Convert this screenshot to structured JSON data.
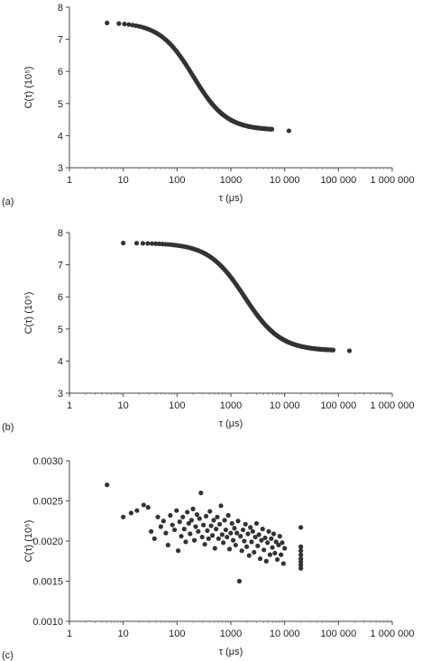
{
  "chart_data": [
    {
      "type": "scatter",
      "panel_label": "(a)",
      "xlabel": "τ (μs)",
      "ylabel": "C(τ) (10⁵)",
      "xscale": "log",
      "xlim": [
        1,
        1000000
      ],
      "ylim": [
        3,
        8
      ],
      "xticks": [
        1,
        10,
        100,
        1000,
        10000,
        100000,
        1000000
      ],
      "xtick_labels": [
        "1",
        "10",
        "100",
        "1000",
        "10 000",
        "100 000",
        "1 000 000"
      ],
      "yticks": [
        3,
        4,
        5,
        6,
        7,
        8
      ],
      "ytick_labels": [
        "3",
        "4",
        "5",
        "6",
        "7",
        "8"
      ],
      "grid": false,
      "legend": "none",
      "marker_color": "#333333",
      "curve": {
        "type": "sigmoid",
        "x_start": 5,
        "x_end": 5800,
        "count": 120,
        "y_base": 4.17,
        "amplitude": 3.36,
        "tau_c": 200,
        "exponent": 1.4
      },
      "extra_points": [
        {
          "x": 12000,
          "y": 4.15
        }
      ]
    },
    {
      "type": "scatter",
      "panel_label": "(b)",
      "xlabel": "τ (μs)",
      "ylabel": "C(τ) (10⁵)",
      "xscale": "log",
      "xlim": [
        1,
        1000000
      ],
      "ylim": [
        3,
        8
      ],
      "xticks": [
        1,
        10,
        100,
        1000,
        10000,
        100000,
        1000000
      ],
      "xtick_labels": [
        "1",
        "10",
        "100",
        "1000",
        "10 000",
        "100 000",
        "1 000 000"
      ],
      "yticks": [
        3,
        4,
        5,
        6,
        7,
        8
      ],
      "ytick_labels": [
        "3",
        "4",
        "5",
        "6",
        "7",
        "8"
      ],
      "grid": false,
      "legend": "none",
      "marker_color": "#333333",
      "curve": {
        "type": "sigmoid",
        "x_start": 10,
        "x_end": 80000,
        "count": 150,
        "y_base": 4.32,
        "amplitude": 3.36,
        "tau_c": 1800,
        "exponent": 1.3
      },
      "extra_points": [
        {
          "x": 160000,
          "y": 4.32
        }
      ]
    },
    {
      "type": "scatter",
      "panel_label": "(c)",
      "xlabel": "τ (μs)",
      "ylabel": "C(τ) (10⁵)",
      "xscale": "log",
      "xlim": [
        1,
        1000000
      ],
      "ylim": [
        0.001,
        0.003
      ],
      "xticks": [
        1,
        10,
        100,
        1000,
        10000,
        100000,
        1000000
      ],
      "xtick_labels": [
        "1",
        "10",
        "100",
        "1000",
        "10 000",
        "100 000",
        "1 000 000"
      ],
      "yticks": [
        0.001,
        0.0015,
        0.002,
        0.0025,
        0.003
      ],
      "ytick_labels": [
        "0.0010",
        "0.0015",
        "0.0020",
        "0.0025",
        "0.0030"
      ],
      "grid": false,
      "legend": "none",
      "marker_color": "#333333",
      "points": [
        {
          "x": 5,
          "y": 0.0027
        },
        {
          "x": 10,
          "y": 0.0023
        },
        {
          "x": 14,
          "y": 0.00235
        },
        {
          "x": 18,
          "y": 0.00238
        },
        {
          "x": 24,
          "y": 0.00245
        },
        {
          "x": 29,
          "y": 0.00242
        },
        {
          "x": 33,
          "y": 0.00212
        },
        {
          "x": 38,
          "y": 0.00203
        },
        {
          "x": 44,
          "y": 0.0023
        },
        {
          "x": 50,
          "y": 0.00218
        },
        {
          "x": 56,
          "y": 0.00225
        },
        {
          "x": 62,
          "y": 0.0021
        },
        {
          "x": 68,
          "y": 0.00195
        },
        {
          "x": 75,
          "y": 0.00232
        },
        {
          "x": 82,
          "y": 0.0022
        },
        {
          "x": 90,
          "y": 0.00214
        },
        {
          "x": 98,
          "y": 0.00238
        },
        {
          "x": 105,
          "y": 0.00188
        },
        {
          "x": 112,
          "y": 0.00224
        },
        {
          "x": 120,
          "y": 0.00206
        },
        {
          "x": 128,
          "y": 0.0023
        },
        {
          "x": 136,
          "y": 0.00215
        },
        {
          "x": 145,
          "y": 0.00199
        },
        {
          "x": 155,
          "y": 0.00236
        },
        {
          "x": 165,
          "y": 0.00222
        },
        {
          "x": 175,
          "y": 0.00209
        },
        {
          "x": 186,
          "y": 0.00226
        },
        {
          "x": 198,
          "y": 0.0024
        },
        {
          "x": 210,
          "y": 0.00201
        },
        {
          "x": 222,
          "y": 0.00218
        },
        {
          "x": 235,
          "y": 0.00233
        },
        {
          "x": 248,
          "y": 0.00212
        },
        {
          "x": 262,
          "y": 0.00228
        },
        {
          "x": 278,
          "y": 0.0026
        },
        {
          "x": 293,
          "y": 0.00205
        },
        {
          "x": 310,
          "y": 0.0022
        },
        {
          "x": 328,
          "y": 0.00196
        },
        {
          "x": 346,
          "y": 0.00231
        },
        {
          "x": 366,
          "y": 0.00213
        },
        {
          "x": 386,
          "y": 0.00203
        },
        {
          "x": 408,
          "y": 0.00237
        },
        {
          "x": 430,
          "y": 0.00219
        },
        {
          "x": 455,
          "y": 0.00207
        },
        {
          "x": 480,
          "y": 0.00226
        },
        {
          "x": 505,
          "y": 0.00191
        },
        {
          "x": 532,
          "y": 0.00215
        },
        {
          "x": 560,
          "y": 0.0023
        },
        {
          "x": 590,
          "y": 0.00203
        },
        {
          "x": 620,
          "y": 0.00221
        },
        {
          "x": 655,
          "y": 0.00244
        },
        {
          "x": 690,
          "y": 0.00208
        },
        {
          "x": 725,
          "y": 0.00198
        },
        {
          "x": 765,
          "y": 0.00226
        },
        {
          "x": 805,
          "y": 0.00214
        },
        {
          "x": 850,
          "y": 0.00205
        },
        {
          "x": 895,
          "y": 0.00232
        },
        {
          "x": 945,
          "y": 0.0019
        },
        {
          "x": 995,
          "y": 0.0021
        },
        {
          "x": 1050,
          "y": 0.00222
        },
        {
          "x": 1105,
          "y": 0.00201
        },
        {
          "x": 1165,
          "y": 0.00216
        },
        {
          "x": 1230,
          "y": 0.00195
        },
        {
          "x": 1295,
          "y": 0.0021
        },
        {
          "x": 1365,
          "y": 0.00225
        },
        {
          "x": 1440,
          "y": 0.0015
        },
        {
          "x": 1515,
          "y": 0.00206
        },
        {
          "x": 1600,
          "y": 0.00188
        },
        {
          "x": 1685,
          "y": 0.00214
        },
        {
          "x": 1775,
          "y": 0.002
        },
        {
          "x": 1870,
          "y": 0.00221
        },
        {
          "x": 1970,
          "y": 0.00193
        },
        {
          "x": 2080,
          "y": 0.00209
        },
        {
          "x": 2190,
          "y": 0.00182
        },
        {
          "x": 2310,
          "y": 0.00217
        },
        {
          "x": 2430,
          "y": 0.00199
        },
        {
          "x": 2560,
          "y": 0.00212
        },
        {
          "x": 2700,
          "y": 0.00186
        },
        {
          "x": 2850,
          "y": 0.00205
        },
        {
          "x": 3000,
          "y": 0.00222
        },
        {
          "x": 3160,
          "y": 0.00194
        },
        {
          "x": 3330,
          "y": 0.00208
        },
        {
          "x": 3510,
          "y": 0.00178
        },
        {
          "x": 3700,
          "y": 0.00201
        },
        {
          "x": 3900,
          "y": 0.00215
        },
        {
          "x": 4110,
          "y": 0.00189
        },
        {
          "x": 4330,
          "y": 0.00204
        },
        {
          "x": 4560,
          "y": 0.00175
        },
        {
          "x": 4810,
          "y": 0.00198
        },
        {
          "x": 5070,
          "y": 0.00212
        },
        {
          "x": 5340,
          "y": 0.00183
        },
        {
          "x": 5630,
          "y": 0.00203
        },
        {
          "x": 5930,
          "y": 0.00192
        },
        {
          "x": 6250,
          "y": 0.00209
        },
        {
          "x": 6590,
          "y": 0.00185
        },
        {
          "x": 6940,
          "y": 0.00199
        },
        {
          "x": 7310,
          "y": 0.00177
        },
        {
          "x": 7710,
          "y": 0.00195
        },
        {
          "x": 8120,
          "y": 0.00206
        },
        {
          "x": 8560,
          "y": 0.00183
        },
        {
          "x": 9020,
          "y": 0.00198
        },
        {
          "x": 9500,
          "y": 0.00172
        },
        {
          "x": 10000,
          "y": 0.00191
        },
        {
          "x": 20000,
          "y": 0.00217
        },
        {
          "x": 20000,
          "y": 0.00193
        },
        {
          "x": 20000,
          "y": 0.00188
        },
        {
          "x": 20000,
          "y": 0.00183
        },
        {
          "x": 20000,
          "y": 0.00178
        },
        {
          "x": 20000,
          "y": 0.00174
        },
        {
          "x": 20000,
          "y": 0.0017
        },
        {
          "x": 20000,
          "y": 0.00166
        }
      ]
    }
  ]
}
